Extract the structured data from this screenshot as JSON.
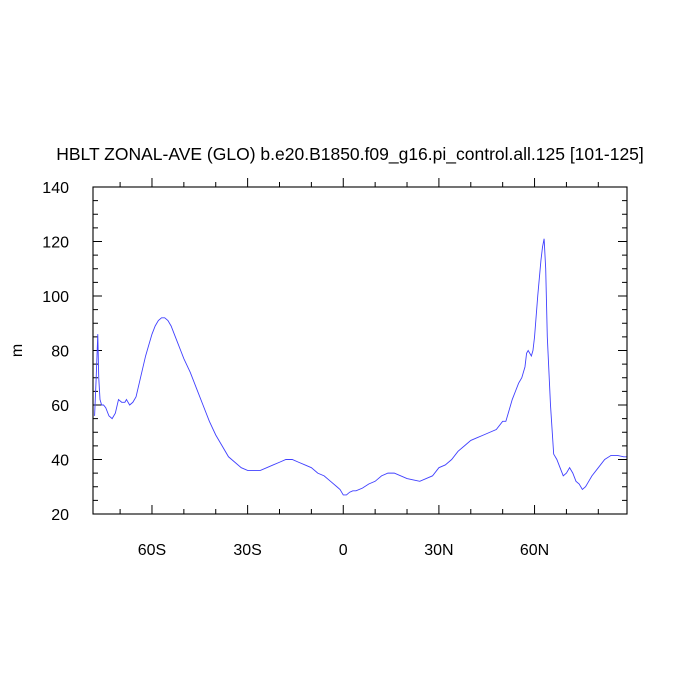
{
  "chart_data": {
    "type": "line",
    "title": "HBLT ZONAL-AVE (GLO) b.e20.B1850.f09_g16.pi_control.all.125 [101-125]",
    "xlabel": "",
    "ylabel": "m",
    "xlim": [
      -78.5,
      89
    ],
    "ylim": [
      20,
      140
    ],
    "x_ticks": [
      {
        "value": -60,
        "label": "60S"
      },
      {
        "value": -30,
        "label": "30S"
      },
      {
        "value": 0,
        "label": "0"
      },
      {
        "value": 30,
        "label": "30N"
      },
      {
        "value": 60,
        "label": "60N"
      }
    ],
    "y_ticks": [
      20,
      40,
      60,
      80,
      100,
      120,
      140
    ],
    "grid": false,
    "line_color": "#4040ff",
    "series": [
      {
        "x": [
          -78,
          -77.5,
          -77,
          -76.7,
          -76.3,
          -75.8,
          -75.2,
          -74.5,
          -73.5,
          -72.5,
          -71.5,
          -70.5,
          -69.5,
          -68.5,
          -68,
          -67,
          -66,
          -65,
          -64,
          -63,
          -62,
          -61,
          -60,
          -59,
          -58,
          -57,
          -56,
          -55,
          -54,
          -53,
          -52,
          -51,
          -50,
          -48,
          -46,
          -44,
          -42,
          -40,
          -38,
          -36,
          -34,
          -32,
          -30,
          -28,
          -26,
          -24,
          -22,
          -20,
          -18,
          -16,
          -14,
          -12,
          -10,
          -8,
          -6,
          -4,
          -2,
          -1,
          0,
          1,
          2,
          3,
          4,
          6,
          8,
          10,
          12,
          14,
          16,
          18,
          20,
          22,
          24,
          26,
          28,
          30,
          32,
          34,
          36,
          38,
          40,
          42,
          44,
          46,
          48,
          50,
          51,
          52,
          53,
          54,
          55,
          56,
          57,
          57.5,
          58,
          59,
          59.5,
          60,
          61,
          62,
          62.5,
          63,
          63.5,
          64,
          65,
          66,
          67,
          68,
          69,
          70,
          71,
          72,
          73,
          74,
          75,
          76,
          77,
          78,
          80,
          82,
          84,
          86,
          88,
          89
        ],
        "y": [
          56,
          70,
          86,
          70,
          62,
          60,
          60,
          59,
          56,
          55,
          57,
          62,
          61,
          61,
          62,
          60,
          61,
          63,
          68,
          73,
          78,
          82,
          86,
          89,
          91,
          92,
          92,
          91,
          89,
          86,
          83,
          80,
          77,
          72,
          66,
          60,
          54,
          49,
          45,
          41,
          39,
          37,
          36,
          36,
          36,
          37,
          38,
          39,
          40,
          40,
          39,
          38,
          37,
          35,
          34,
          32,
          30,
          29,
          27,
          27,
          28,
          28.5,
          28.5,
          29.5,
          31,
          32,
          34,
          35,
          35,
          34,
          33,
          32.5,
          32,
          33,
          34,
          37,
          38,
          40,
          43,
          45,
          47,
          48,
          49,
          50,
          51,
          54,
          54,
          58,
          62,
          65,
          68,
          70,
          74,
          79,
          80,
          78,
          80,
          85,
          100,
          113,
          118,
          121,
          110,
          85,
          60,
          42,
          40,
          37,
          34,
          35,
          37,
          35,
          32,
          31,
          29,
          30,
          32,
          34,
          37,
          40,
          41.5,
          41.5,
          41,
          41
        ]
      }
    ]
  }
}
